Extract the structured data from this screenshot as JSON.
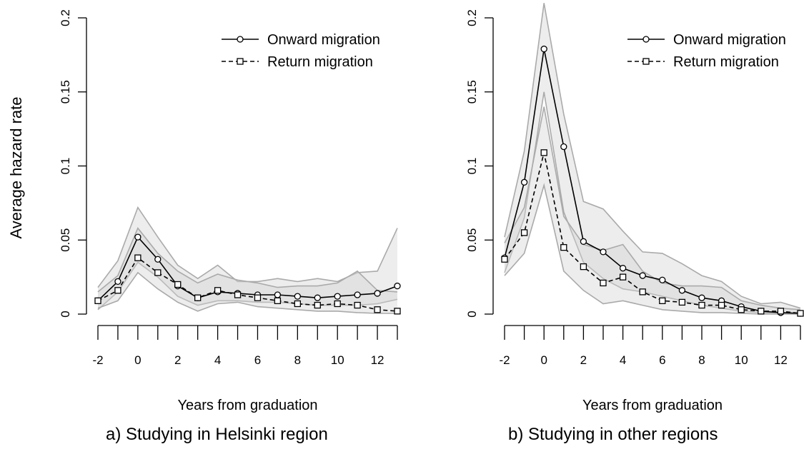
{
  "figure": {
    "ylabel": "Average hazard rate"
  },
  "chart_data": [
    {
      "type": "line",
      "caption": "a) Studying in Helsinki region",
      "xlabel": "Years from graduation",
      "ylabel": "Average hazard rate",
      "xlim": [
        -2,
        13
      ],
      "ylim": [
        0,
        0.2
      ],
      "x": [
        -2,
        -1,
        0,
        1,
        2,
        3,
        4,
        5,
        6,
        7,
        8,
        9,
        10,
        11,
        12,
        13
      ],
      "xticks": [
        "-2",
        "0",
        "2",
        "4",
        "6",
        "8",
        "10",
        "12"
      ],
      "yticks": [
        "0",
        "0.05",
        "0.1",
        "0.15",
        "0.2"
      ],
      "legend_position": "top-right",
      "grid": false,
      "series": [
        {
          "name": "Onward migration",
          "marker": "circle",
          "line": "solid",
          "values": [
            0.009,
            0.022,
            0.052,
            0.037,
            0.019,
            0.011,
            0.015,
            0.014,
            0.013,
            0.013,
            0.012,
            0.011,
            0.012,
            0.013,
            0.014,
            0.019
          ],
          "band_lower": [
            0.003,
            0.015,
            0.035,
            0.025,
            0.012,
            0.006,
            0.009,
            0.009,
            0.008,
            0.008,
            0.007,
            0.006,
            0.006,
            0.006,
            0.007,
            0.01
          ],
          "band_upper": [
            0.018,
            0.036,
            0.072,
            0.052,
            0.033,
            0.024,
            0.033,
            0.022,
            0.022,
            0.024,
            0.022,
            0.024,
            0.022,
            0.028,
            0.029,
            0.058
          ]
        },
        {
          "name": "Return migration",
          "marker": "square",
          "line": "dashed",
          "values": [
            0.009,
            0.016,
            0.038,
            0.028,
            0.02,
            0.011,
            0.016,
            0.013,
            0.011,
            0.009,
            0.007,
            0.006,
            0.007,
            0.006,
            0.003,
            0.002
          ],
          "band_lower": [
            0.004,
            0.009,
            0.028,
            0.017,
            0.008,
            0.002,
            0.007,
            0.008,
            0.005,
            0.004,
            0.003,
            0.002,
            0.002,
            0.001,
            0.0005,
            0.0005
          ],
          "band_upper": [
            0.015,
            0.026,
            0.058,
            0.041,
            0.029,
            0.021,
            0.027,
            0.023,
            0.021,
            0.018,
            0.019,
            0.019,
            0.021,
            0.029,
            0.016,
            0.015
          ]
        }
      ]
    },
    {
      "type": "line",
      "caption": "b) Studying in other regions",
      "xlabel": "Years from graduation",
      "ylabel": "",
      "xlim": [
        -2,
        13
      ],
      "ylim": [
        0,
        0.2
      ],
      "x": [
        -2,
        -1,
        0,
        1,
        2,
        3,
        4,
        5,
        6,
        7,
        8,
        9,
        10,
        11,
        12,
        13
      ],
      "xticks": [
        "-2",
        "0",
        "2",
        "4",
        "6",
        "8",
        "10",
        "12"
      ],
      "yticks": [
        "0",
        "0.05",
        "0.1",
        "0.15",
        "0.2"
      ],
      "legend_position": "top-right",
      "grid": false,
      "series": [
        {
          "name": "Onward migration",
          "marker": "circle",
          "line": "solid",
          "values": [
            0.038,
            0.089,
            0.179,
            0.113,
            0.049,
            0.042,
            0.031,
            0.026,
            0.023,
            0.016,
            0.011,
            0.009,
            0.005,
            0.002,
            0.001,
            0.0005
          ],
          "band_lower": [
            0.028,
            0.065,
            0.15,
            0.069,
            0.035,
            0.024,
            0.017,
            0.015,
            0.012,
            0.009,
            0.006,
            0.004,
            0.002,
            0.001,
            0.0005,
            0
          ],
          "band_upper": [
            0.052,
            0.11,
            0.21,
            0.135,
            0.076,
            0.071,
            0.056,
            0.042,
            0.041,
            0.034,
            0.026,
            0.022,
            0.012,
            0.007,
            0.008,
            0.004
          ]
        },
        {
          "name": "Return migration",
          "marker": "square",
          "line": "dashed",
          "values": [
            0.037,
            0.055,
            0.109,
            0.045,
            0.032,
            0.021,
            0.025,
            0.015,
            0.009,
            0.008,
            0.006,
            0.006,
            0.003,
            0.002,
            0.002,
            0.0005
          ],
          "band_lower": [
            0.026,
            0.041,
            0.087,
            0.029,
            0.016,
            0.007,
            0.009,
            0.006,
            0.003,
            0.002,
            0.001,
            0.001,
            0.0005,
            0,
            0,
            0
          ],
          "band_upper": [
            0.048,
            0.072,
            0.14,
            0.066,
            0.047,
            0.043,
            0.047,
            0.029,
            0.021,
            0.019,
            0.019,
            0.018,
            0.009,
            0.006,
            0.004,
            0.003
          ]
        }
      ]
    }
  ]
}
